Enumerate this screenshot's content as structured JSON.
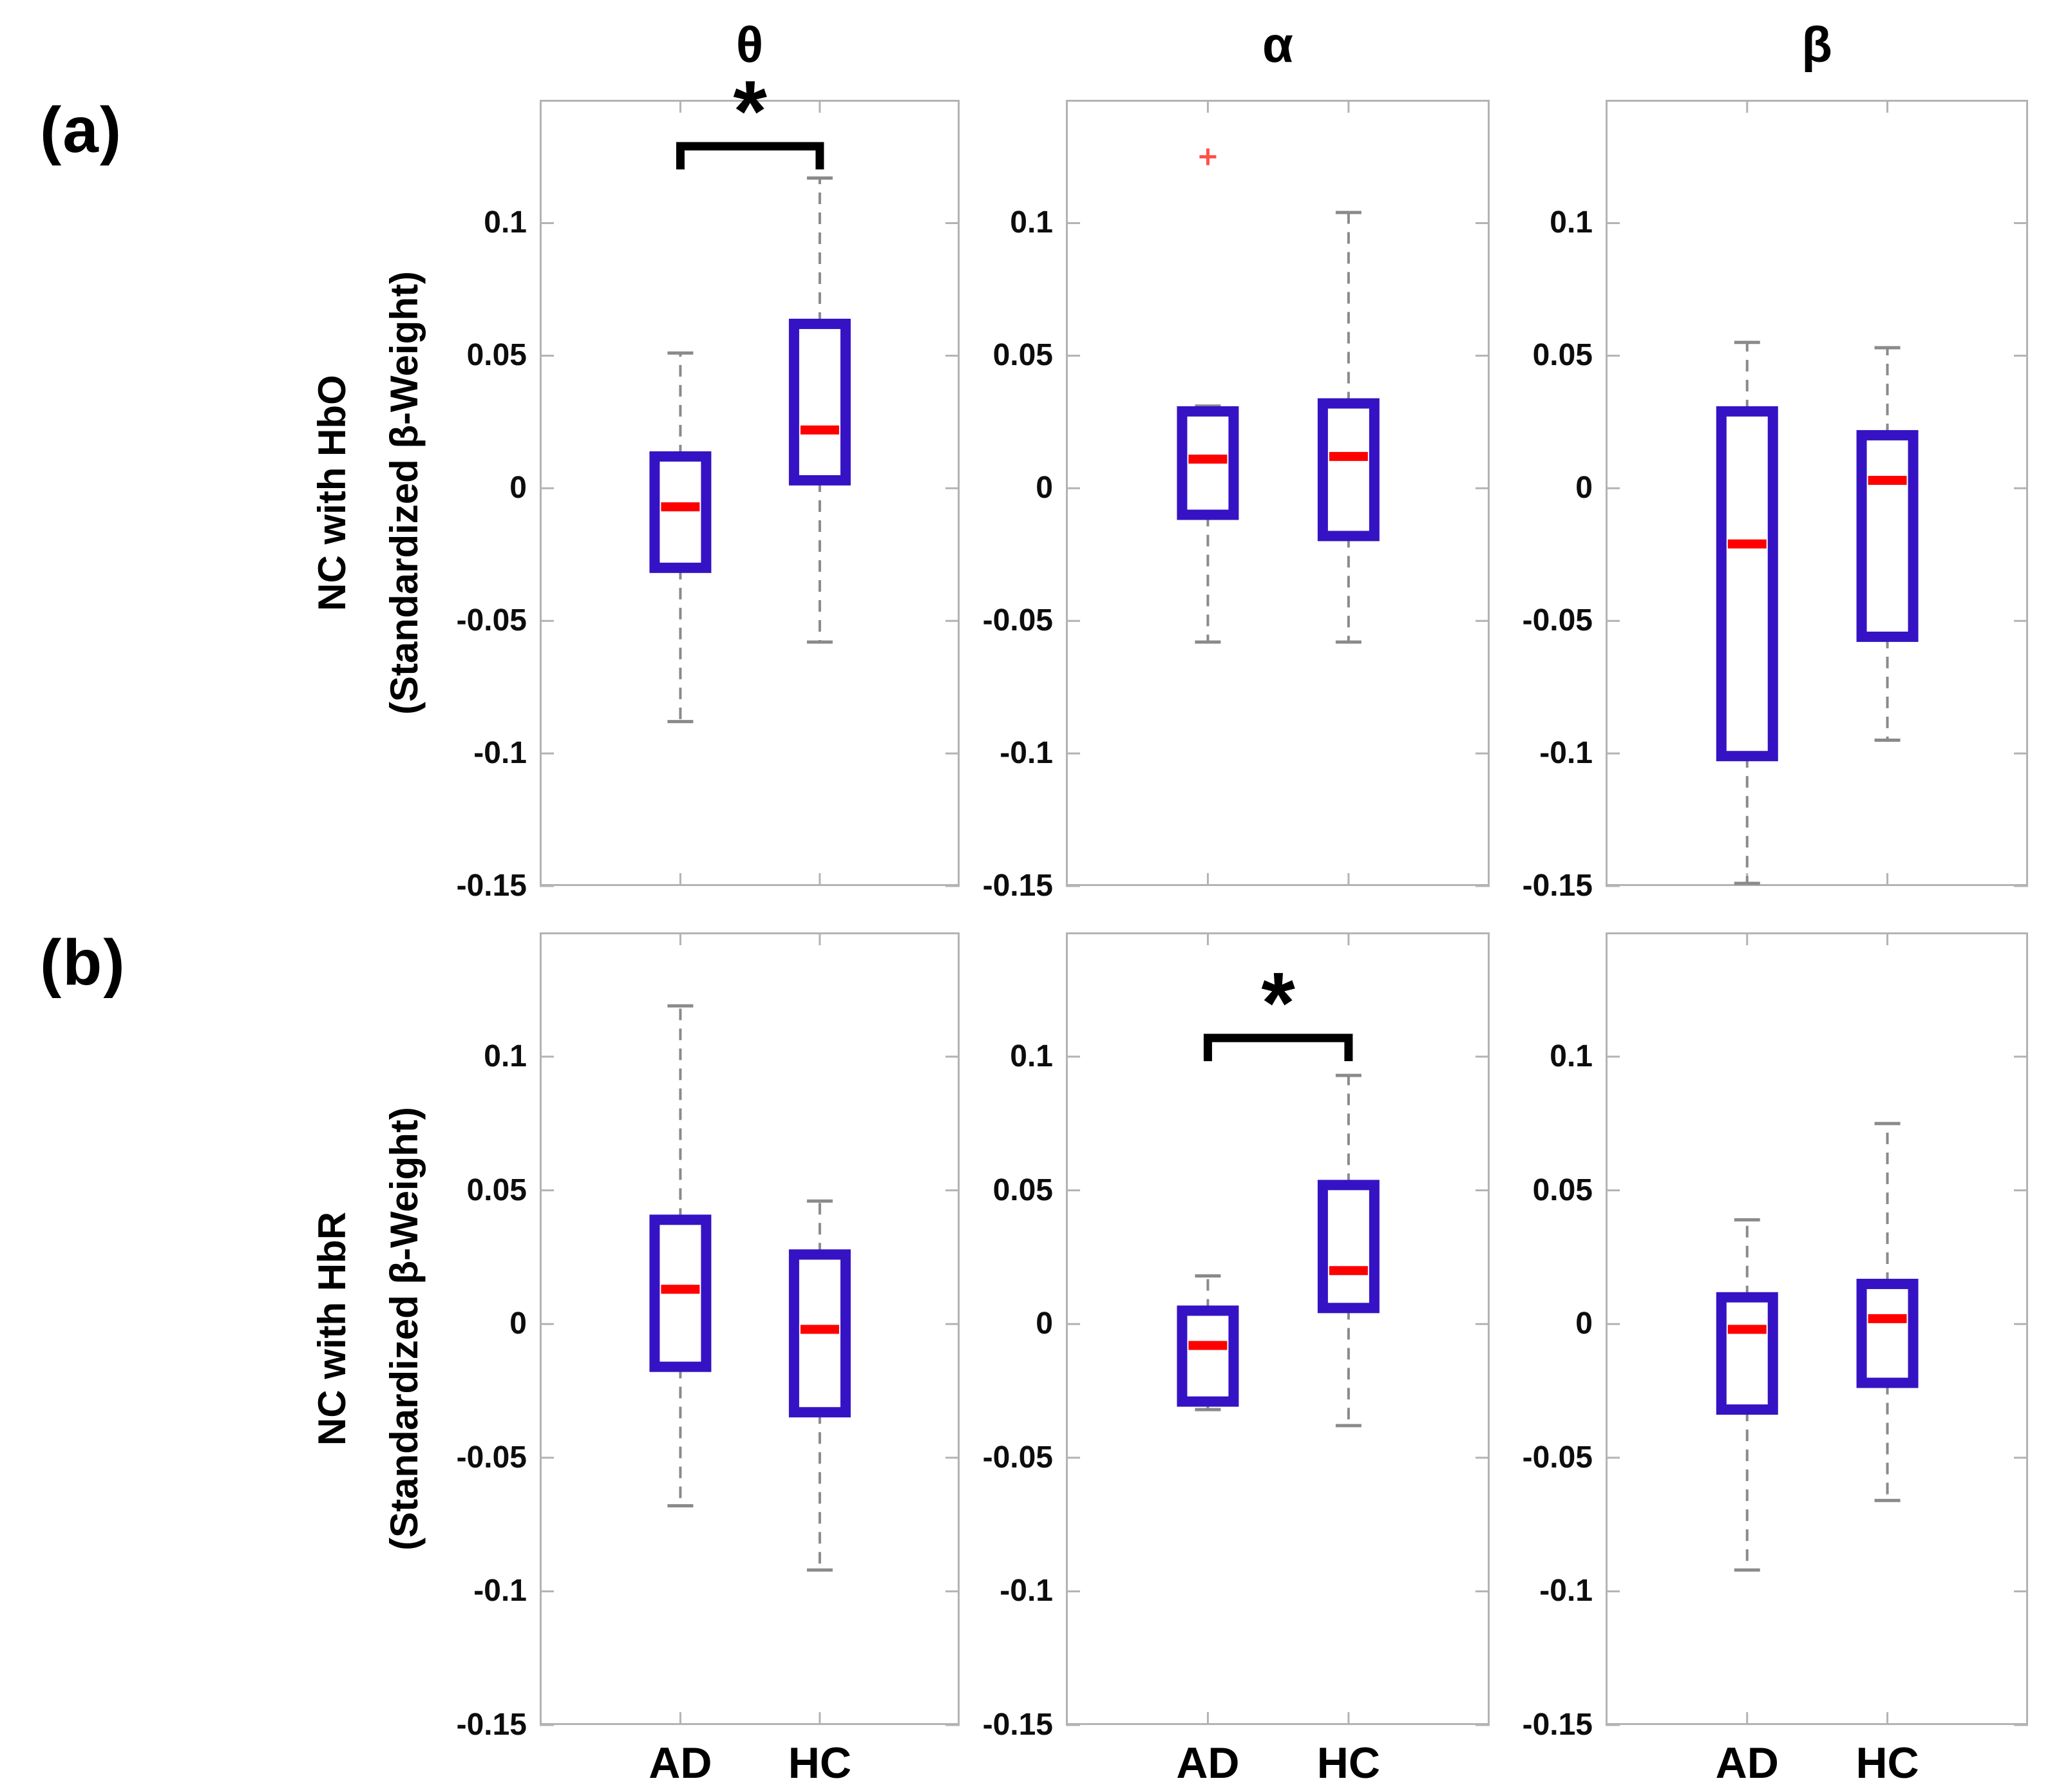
{
  "labels": {
    "a": "(a)",
    "b": "(b)"
  },
  "chart_data": {
    "type": "box",
    "columns": [
      "θ",
      "α",
      "β"
    ],
    "groups": [
      "AD",
      "HC"
    ],
    "ylim": [
      -0.15,
      0.1465
    ],
    "y_ticks": [
      {
        "v": 0.1,
        "label": "0.1"
      },
      {
        "v": 0.05,
        "label": "0.05"
      },
      {
        "v": 0,
        "label": "0"
      },
      {
        "v": -0.05,
        "label": "-0.05"
      },
      {
        "v": -0.1,
        "label": "-0.1"
      },
      {
        "v": -0.15,
        "label": "-0.15"
      }
    ],
    "colors": {
      "box": "#3513C4",
      "median": "#FF0000",
      "whisker": "#8A8A8A",
      "axis": "#B3B3B3",
      "significance": "#000000",
      "outlier": "#FF5147",
      "text": "#000000"
    },
    "rows": [
      {
        "id": "a",
        "ylabel": [
          "NC with HbO",
          "(Standardized β-Weight)"
        ],
        "panels": [
          {
            "band": "θ",
            "significance": {
              "label": "*",
              "bar_y": 0.129,
              "drop_to": 0.12,
              "between": [
                "AD",
                "HC"
              ]
            },
            "boxes": [
              {
                "group": "AD",
                "whisker_low": -0.088,
                "q1": -0.03,
                "median": -0.007,
                "q3": 0.012,
                "whisker_high": 0.051,
                "outliers": []
              },
              {
                "group": "HC",
                "whisker_low": -0.058,
                "q1": 0.003,
                "median": 0.022,
                "q3": 0.062,
                "whisker_high": 0.117,
                "outliers": []
              }
            ]
          },
          {
            "band": "α",
            "significance": null,
            "boxes": [
              {
                "group": "AD",
                "whisker_low": -0.058,
                "q1": -0.01,
                "median": 0.011,
                "q3": 0.029,
                "whisker_high": 0.031,
                "outliers": [
                  0.125
                ]
              },
              {
                "group": "HC",
                "whisker_low": -0.058,
                "q1": -0.018,
                "median": 0.012,
                "q3": 0.032,
                "whisker_high": 0.104,
                "outliers": []
              }
            ]
          },
          {
            "band": "β",
            "significance": null,
            "boxes": [
              {
                "group": "AD",
                "whisker_low": -0.149,
                "q1": -0.101,
                "median": -0.021,
                "q3": 0.029,
                "whisker_high": 0.055,
                "outliers": []
              },
              {
                "group": "HC",
                "whisker_low": -0.095,
                "q1": -0.056,
                "median": 0.003,
                "q3": 0.02,
                "whisker_high": 0.053,
                "outliers": []
              }
            ]
          }
        ]
      },
      {
        "id": "b",
        "ylabel": [
          "NC with HbR",
          "(Standardized β-Weight)"
        ],
        "panels": [
          {
            "band": "θ",
            "significance": null,
            "boxes": [
              {
                "group": "AD",
                "whisker_low": -0.068,
                "q1": -0.016,
                "median": 0.013,
                "q3": 0.039,
                "whisker_high": 0.119,
                "outliers": []
              },
              {
                "group": "HC",
                "whisker_low": -0.092,
                "q1": -0.033,
                "median": -0.002,
                "q3": 0.026,
                "whisker_high": 0.046,
                "outliers": []
              }
            ]
          },
          {
            "band": "α",
            "significance": {
              "label": "*",
              "bar_y": 0.107,
              "drop_to": 0.1,
              "between": [
                "AD",
                "HC"
              ]
            },
            "boxes": [
              {
                "group": "AD",
                "whisker_low": -0.032,
                "q1": -0.029,
                "median": -0.008,
                "q3": 0.005,
                "whisker_high": 0.018,
                "outliers": []
              },
              {
                "group": "HC",
                "whisker_low": -0.038,
                "q1": 0.006,
                "median": 0.02,
                "q3": 0.052,
                "whisker_high": 0.093,
                "outliers": []
              }
            ]
          },
          {
            "band": "β",
            "significance": null,
            "boxes": [
              {
                "group": "AD",
                "whisker_low": -0.092,
                "q1": -0.032,
                "median": -0.002,
                "q3": 0.01,
                "whisker_high": 0.039,
                "outliers": []
              },
              {
                "group": "HC",
                "whisker_low": -0.066,
                "q1": -0.022,
                "median": 0.002,
                "q3": 0.015,
                "whisker_high": 0.075,
                "outliers": []
              }
            ]
          }
        ]
      }
    ]
  }
}
